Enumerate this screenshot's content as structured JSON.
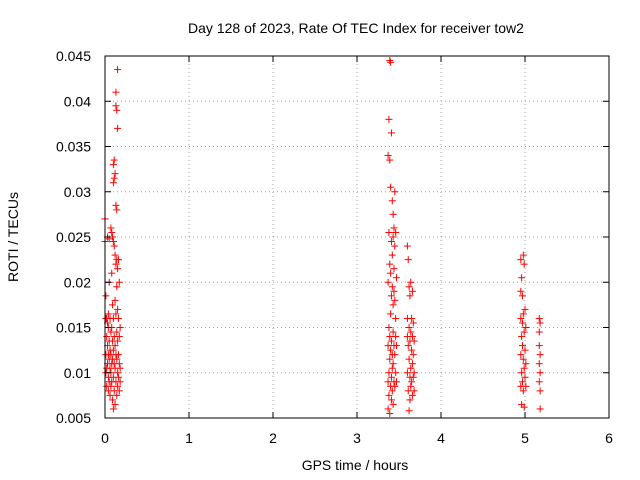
{
  "chart_data": {
    "type": "scatter",
    "title": "Day 128 of 2023, Rate Of TEC Index for receiver tow2",
    "xlabel": "GPS time / hours",
    "ylabel": "ROTI / TECUs",
    "xlim": [
      0,
      6
    ],
    "ylim": [
      0.005,
      0.045
    ],
    "xticks": [
      "0",
      "1",
      "2",
      "3",
      "4",
      "5",
      "6"
    ],
    "yticks": [
      "0.005",
      "0.01",
      "0.015",
      "0.02",
      "0.025",
      "0.03",
      "0.035",
      "0.04",
      "0.045"
    ],
    "grid": true,
    "marker": "+",
    "colors": {
      "points": "#ff0000",
      "grid": "#a0a0a0",
      "frame": "#000000"
    },
    "series": [
      {
        "points": [
          [
            0.0,
            0.027
          ],
          [
            0.0,
            0.0245
          ],
          [
            0.01,
            0.0185
          ],
          [
            0.01,
            0.016
          ],
          [
            0.01,
            0.012
          ],
          [
            0.01,
            0.01
          ],
          [
            0.02,
            0.016
          ],
          [
            0.02,
            0.014
          ],
          [
            0.02,
            0.0105
          ],
          [
            0.02,
            0.0085
          ],
          [
            0.03,
            0.025
          ],
          [
            0.03,
            0.0155
          ],
          [
            0.03,
            0.013
          ],
          [
            0.03,
            0.011
          ],
          [
            0.04,
            0.0165
          ],
          [
            0.04,
            0.015
          ],
          [
            0.04,
            0.012
          ],
          [
            0.04,
            0.0095
          ],
          [
            0.04,
            0.008
          ],
          [
            0.05,
            0.0248
          ],
          [
            0.05,
            0.02
          ],
          [
            0.05,
            0.0135
          ],
          [
            0.05,
            0.0115
          ],
          [
            0.05,
            0.009
          ],
          [
            0.06,
            0.016
          ],
          [
            0.06,
            0.0125
          ],
          [
            0.06,
            0.0105
          ],
          [
            0.06,
            0.0075
          ],
          [
            0.07,
            0.026
          ],
          [
            0.07,
            0.0145
          ],
          [
            0.07,
            0.012
          ],
          [
            0.07,
            0.01
          ],
          [
            0.07,
            0.0085
          ],
          [
            0.08,
            0.0255
          ],
          [
            0.08,
            0.021
          ],
          [
            0.08,
            0.015
          ],
          [
            0.08,
            0.011
          ],
          [
            0.08,
            0.009
          ],
          [
            0.09,
            0.025
          ],
          [
            0.09,
            0.0175
          ],
          [
            0.09,
            0.0135
          ],
          [
            0.09,
            0.0115
          ],
          [
            0.09,
            0.007
          ],
          [
            0.1,
            0.033
          ],
          [
            0.1,
            0.031
          ],
          [
            0.1,
            0.0245
          ],
          [
            0.1,
            0.016
          ],
          [
            0.1,
            0.0125
          ],
          [
            0.1,
            0.0095
          ],
          [
            0.1,
            0.006
          ],
          [
            0.11,
            0.0335
          ],
          [
            0.11,
            0.0315
          ],
          [
            0.11,
            0.024
          ],
          [
            0.11,
            0.014
          ],
          [
            0.11,
            0.011
          ],
          [
            0.11,
            0.008
          ],
          [
            0.12,
            0.032
          ],
          [
            0.12,
            0.023
          ],
          [
            0.12,
            0.018
          ],
          [
            0.12,
            0.013
          ],
          [
            0.12,
            0.0105
          ],
          [
            0.12,
            0.0065
          ],
          [
            0.13,
            0.041
          ],
          [
            0.13,
            0.0395
          ],
          [
            0.13,
            0.0285
          ],
          [
            0.13,
            0.022
          ],
          [
            0.13,
            0.0165
          ],
          [
            0.13,
            0.012
          ],
          [
            0.13,
            0.009
          ],
          [
            0.14,
            0.039
          ],
          [
            0.14,
            0.028
          ],
          [
            0.14,
            0.0225
          ],
          [
            0.14,
            0.0195
          ],
          [
            0.14,
            0.0145
          ],
          [
            0.14,
            0.0115
          ],
          [
            0.14,
            0.0075
          ],
          [
            0.15,
            0.0435
          ],
          [
            0.15,
            0.037
          ],
          [
            0.15,
            0.0215
          ],
          [
            0.15,
            0.017
          ],
          [
            0.15,
            0.0135
          ],
          [
            0.15,
            0.01
          ],
          [
            0.15,
            0.0085
          ],
          [
            0.16,
            0.0225
          ],
          [
            0.16,
            0.016
          ],
          [
            0.16,
            0.012
          ],
          [
            0.16,
            0.0095
          ],
          [
            0.17,
            0.02
          ],
          [
            0.17,
            0.014
          ],
          [
            0.17,
            0.011
          ],
          [
            0.17,
            0.008
          ],
          [
            0.18,
            0.015
          ],
          [
            0.18,
            0.0105
          ],
          [
            0.18,
            0.009
          ],
          [
            3.37,
            0.034
          ],
          [
            3.37,
            0.02
          ],
          [
            3.37,
            0.013
          ],
          [
            3.37,
            0.009
          ],
          [
            3.37,
            0.006
          ],
          [
            3.38,
            0.038
          ],
          [
            3.38,
            0.0255
          ],
          [
            3.38,
            0.015
          ],
          [
            3.38,
            0.01
          ],
          [
            3.38,
            0.0075
          ],
          [
            3.39,
            0.0445
          ],
          [
            3.39,
            0.0335
          ],
          [
            3.39,
            0.022
          ],
          [
            3.39,
            0.014
          ],
          [
            3.39,
            0.0115
          ],
          [
            3.39,
            0.0055
          ],
          [
            3.4,
            0.0443
          ],
          [
            3.4,
            0.0305
          ],
          [
            3.4,
            0.021
          ],
          [
            3.4,
            0.0165
          ],
          [
            3.4,
            0.0125
          ],
          [
            3.4,
            0.0085
          ],
          [
            3.41,
            0.0365
          ],
          [
            3.41,
            0.0245
          ],
          [
            3.41,
            0.0185
          ],
          [
            3.41,
            0.0135
          ],
          [
            3.41,
            0.0095
          ],
          [
            3.41,
            0.007
          ],
          [
            3.42,
            0.029
          ],
          [
            3.42,
            0.023
          ],
          [
            3.42,
            0.0195
          ],
          [
            3.42,
            0.012
          ],
          [
            3.42,
            0.0105
          ],
          [
            3.42,
            0.008
          ],
          [
            3.43,
            0.0275
          ],
          [
            3.43,
            0.025
          ],
          [
            3.43,
            0.0175
          ],
          [
            3.43,
            0.0145
          ],
          [
            3.43,
            0.011
          ],
          [
            3.43,
            0.0065
          ],
          [
            3.44,
            0.026
          ],
          [
            3.44,
            0.0215
          ],
          [
            3.44,
            0.019
          ],
          [
            3.44,
            0.013
          ],
          [
            3.44,
            0.009
          ],
          [
            3.45,
            0.03
          ],
          [
            3.45,
            0.024
          ],
          [
            3.45,
            0.018
          ],
          [
            3.45,
            0.012
          ],
          [
            3.45,
            0.0085
          ],
          [
            3.46,
            0.0255
          ],
          [
            3.46,
            0.016
          ],
          [
            3.46,
            0.014
          ],
          [
            3.46,
            0.01
          ],
          [
            3.47,
            0.0205
          ],
          [
            3.47,
            0.013
          ],
          [
            3.47,
            0.009
          ],
          [
            3.6,
            0.024
          ],
          [
            3.6,
            0.016
          ],
          [
            3.6,
            0.014
          ],
          [
            3.6,
            0.01
          ],
          [
            3.61,
            0.0225
          ],
          [
            3.61,
            0.013
          ],
          [
            3.61,
            0.008
          ],
          [
            3.62,
            0.0195
          ],
          [
            3.62,
            0.015
          ],
          [
            3.62,
            0.0115
          ],
          [
            3.62,
            0.0058
          ],
          [
            3.63,
            0.0185
          ],
          [
            3.63,
            0.0135
          ],
          [
            3.63,
            0.0095
          ],
          [
            3.63,
            0.007
          ],
          [
            3.64,
            0.02
          ],
          [
            3.64,
            0.0145
          ],
          [
            3.64,
            0.0105
          ],
          [
            3.64,
            0.0085
          ],
          [
            3.65,
            0.016
          ],
          [
            3.65,
            0.0125
          ],
          [
            3.65,
            0.009
          ],
          [
            3.66,
            0.019
          ],
          [
            3.66,
            0.014
          ],
          [
            3.66,
            0.011
          ],
          [
            3.66,
            0.0075
          ],
          [
            3.67,
            0.0155
          ],
          [
            3.67,
            0.012
          ],
          [
            3.67,
            0.0095
          ],
          [
            3.68,
            0.0135
          ],
          [
            3.68,
            0.01
          ],
          [
            3.68,
            0.008
          ],
          [
            4.95,
            0.0225
          ],
          [
            4.95,
            0.019
          ],
          [
            4.95,
            0.016
          ],
          [
            4.95,
            0.012
          ],
          [
            4.95,
            0.0085
          ],
          [
            4.96,
            0.0205
          ],
          [
            4.96,
            0.014
          ],
          [
            4.96,
            0.01
          ],
          [
            4.96,
            0.0065
          ],
          [
            4.97,
            0.0185
          ],
          [
            4.97,
            0.0155
          ],
          [
            4.97,
            0.013
          ],
          [
            4.97,
            0.009
          ],
          [
            4.98,
            0.023
          ],
          [
            4.98,
            0.0165
          ],
          [
            4.98,
            0.0115
          ],
          [
            4.98,
            0.008
          ],
          [
            4.99,
            0.022
          ],
          [
            4.99,
            0.0145
          ],
          [
            4.99,
            0.0105
          ],
          [
            4.99,
            0.0062
          ],
          [
            5.0,
            0.017
          ],
          [
            5.0,
            0.0125
          ],
          [
            5.0,
            0.0095
          ],
          [
            5.01,
            0.015
          ],
          [
            5.01,
            0.011
          ],
          [
            5.01,
            0.0085
          ],
          [
            5.17,
            0.016
          ],
          [
            5.17,
            0.0145
          ],
          [
            5.17,
            0.013
          ],
          [
            5.17,
            0.011
          ],
          [
            5.17,
            0.009
          ],
          [
            5.18,
            0.0155
          ],
          [
            5.18,
            0.012
          ],
          [
            5.18,
            0.01
          ],
          [
            5.18,
            0.008
          ],
          [
            5.18,
            0.006
          ]
        ]
      }
    ]
  }
}
